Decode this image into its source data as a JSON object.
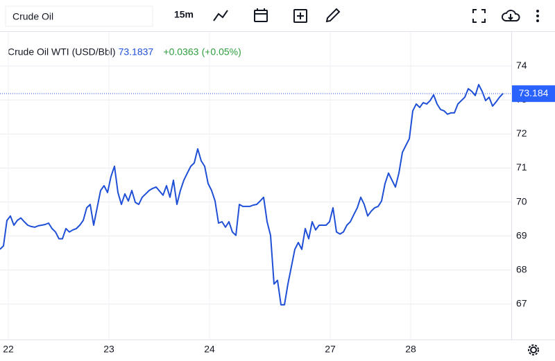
{
  "toolbar": {
    "symbol": "Crude Oil",
    "interval": "15m"
  },
  "chart_data": {
    "type": "line",
    "title": "Crude Oil WTI (USD/Bbl)",
    "quote": {
      "price": "73.1837",
      "change": "+0.0363",
      "change_pct": "(+0.05%)"
    },
    "series": [
      {
        "name": "Crude Oil WTI",
        "color": "#1f4fd6",
        "values": [
          68.61,
          68.71,
          69.46,
          69.59,
          69.32,
          69.46,
          69.53,
          69.42,
          69.32,
          69.28,
          69.26,
          69.3,
          69.32,
          69.34,
          69.38,
          69.22,
          69.12,
          68.92,
          68.92,
          69.22,
          69.12,
          69.18,
          69.22,
          69.32,
          69.46,
          69.83,
          69.93,
          69.32,
          69.83,
          70.34,
          70.48,
          70.28,
          70.75,
          71.05,
          70.28,
          69.93,
          70.24,
          70.03,
          70.34,
          69.99,
          69.93,
          70.14,
          70.24,
          70.34,
          70.4,
          70.44,
          70.32,
          70.2,
          70.48,
          70.14,
          70.64,
          69.93,
          70.34,
          70.64,
          70.85,
          71.05,
          71.15,
          71.56,
          71.21,
          71.05,
          70.54,
          70.34,
          70.03,
          69.38,
          69.42,
          69.26,
          69.42,
          69.12,
          69.02,
          69.93,
          69.87,
          69.87,
          69.87,
          69.91,
          69.93,
          70.03,
          70.14,
          69.42,
          69.02,
          67.59,
          67.7,
          66.98,
          66.98,
          67.59,
          68.1,
          68.61,
          68.81,
          68.61,
          69.22,
          68.92,
          69.42,
          69.18,
          69.32,
          69.32,
          69.32,
          69.42,
          69.83,
          69.12,
          69.06,
          69.12,
          69.32,
          69.42,
          69.63,
          69.83,
          70.14,
          69.93,
          69.59,
          69.73,
          69.83,
          69.87,
          70.03,
          70.54,
          70.85,
          70.64,
          70.44,
          70.85,
          71.46,
          71.66,
          71.86,
          72.68,
          72.88,
          72.78,
          72.92,
          72.88,
          72.98,
          73.15,
          72.88,
          72.72,
          72.68,
          72.58,
          72.62,
          72.62,
          72.88,
          72.98,
          73.08,
          73.33,
          73.25,
          73.13,
          73.45,
          73.25,
          72.98,
          73.08,
          72.82,
          72.94,
          73.08,
          73.19
        ]
      }
    ],
    "last_value": 73.184,
    "xlim": [
      0,
      147.4
    ],
    "xticks": [
      {
        "value": 2.4,
        "label": "22"
      },
      {
        "value": 31.4,
        "label": "23"
      },
      {
        "value": 60.4,
        "label": "24"
      },
      {
        "value": 95.2,
        "label": "27"
      },
      {
        "value": 118.4,
        "label": "28"
      }
    ],
    "ylim": [
      66,
      75
    ],
    "yticks": [
      67,
      68,
      69,
      70,
      71,
      72,
      73,
      74
    ],
    "grid": true
  }
}
